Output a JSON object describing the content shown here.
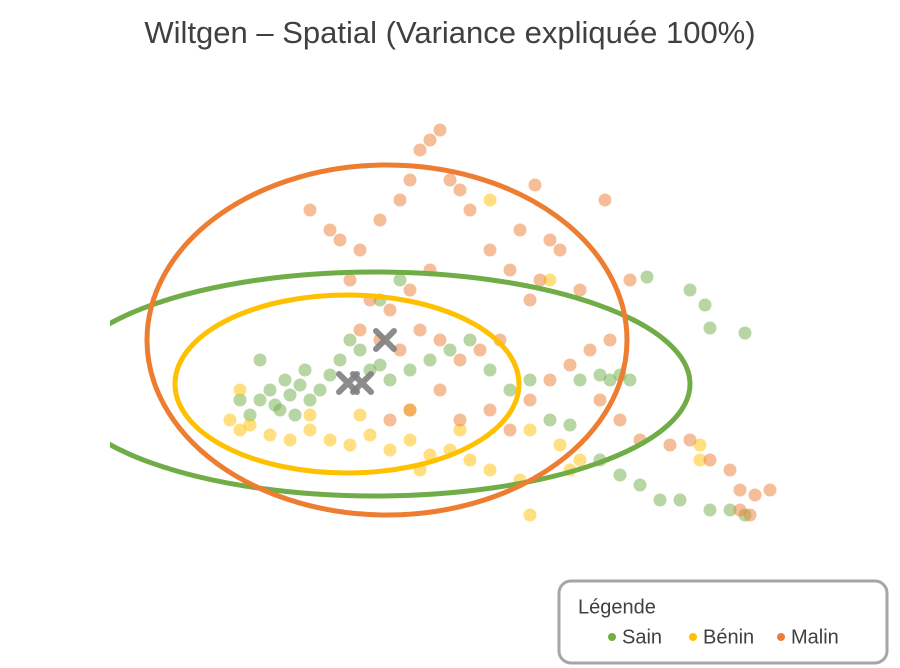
{
  "chart_data": {
    "type": "scatter",
    "title": "Wiltgen – Spatial (Variance expliquée 100%)",
    "xlim": [
      0,
      690
    ],
    "ylim": [
      0,
      440
    ],
    "legend_title": "Légende",
    "legend_position": "bottom-right",
    "series": [
      {
        "name": "Sain",
        "color": "#70ad47",
        "x": [
          150,
          160,
          170,
          180,
          190,
          175,
          165,
          200,
          210,
          185,
          195,
          220,
          230,
          240,
          250,
          260,
          270,
          280,
          300,
          320,
          340,
          360,
          380,
          400,
          420,
          440,
          460,
          470,
          490,
          500,
          510,
          520,
          490,
          510,
          530,
          550,
          570,
          600,
          620,
          635,
          580,
          595,
          600,
          635,
          537,
          150,
          130,
          140,
          270,
          290
        ],
        "y": [
          140,
          150,
          130,
          145,
          155,
          160,
          135,
          140,
          150,
          125,
          170,
          165,
          180,
          200,
          190,
          170,
          175,
          160,
          170,
          180,
          190,
          200,
          170,
          150,
          160,
          120,
          115,
          160,
          165,
          160,
          165,
          160,
          80,
          65,
          55,
          40,
          40,
          30,
          30,
          25,
          250,
          235,
          212,
          207,
          263,
          180,
          140,
          125,
          240,
          260
        ],
        "ellipse": {
          "cx": 265,
          "cy": 156,
          "rx": 315,
          "ry": 112
        },
        "centroid": {
          "x": 252,
          "y": 157
        }
      },
      {
        "name": "Bénin",
        "color": "#ffc000",
        "x": [
          120,
          130,
          140,
          160,
          180,
          200,
          220,
          240,
          260,
          280,
          300,
          320,
          340,
          360,
          380,
          300,
          250,
          200,
          420,
          450,
          470,
          460,
          410,
          420,
          440,
          380,
          590,
          590,
          130,
          310,
          350
        ],
        "y": [
          120,
          110,
          115,
          105,
          100,
          110,
          100,
          95,
          105,
          90,
          100,
          85,
          90,
          80,
          70,
          130,
          125,
          125,
          110,
          95,
          80,
          70,
          60,
          25,
          260,
          340,
          95,
          80,
          150,
          70,
          110
        ],
        "ellipse": {
          "cx": 237,
          "cy": 156,
          "rx": 172,
          "ry": 89
        },
        "centroid": {
          "x": 238,
          "y": 157
        }
      },
      {
        "name": "Malin",
        "color": "#ed7d31",
        "x": [
          200,
          220,
          230,
          250,
          270,
          290,
          300,
          310,
          320,
          330,
          340,
          350,
          360,
          380,
          400,
          420,
          430,
          440,
          450,
          320,
          300,
          280,
          260,
          240,
          250,
          270,
          290,
          310,
          330,
          350,
          370,
          390,
          330,
          300,
          280,
          350,
          380,
          400,
          420,
          440,
          460,
          480,
          500,
          510,
          530,
          560,
          580,
          600,
          620,
          630,
          645,
          630,
          640,
          660,
          490,
          470,
          425,
          495,
          520,
          410
        ],
        "y": [
          330,
          310,
          300,
          290,
          320,
          340,
          360,
          390,
          400,
          410,
          360,
          350,
          330,
          290,
          270,
          240,
          260,
          300,
          290,
          270,
          250,
          230,
          240,
          260,
          210,
          200,
          190,
          210,
          200,
          180,
          190,
          200,
          150,
          130,
          120,
          120,
          130,
          110,
          140,
          160,
          175,
          190,
          200,
          120,
          100,
          95,
          100,
          80,
          70,
          50,
          45,
          30,
          25,
          50,
          140,
          250,
          355,
          340,
          260,
          310
        ],
        "ellipse": {
          "cx": 277,
          "cy": 200,
          "rx": 240,
          "ry": 175
        },
        "centroid": {
          "x": 275,
          "y": 200
        }
      }
    ]
  }
}
